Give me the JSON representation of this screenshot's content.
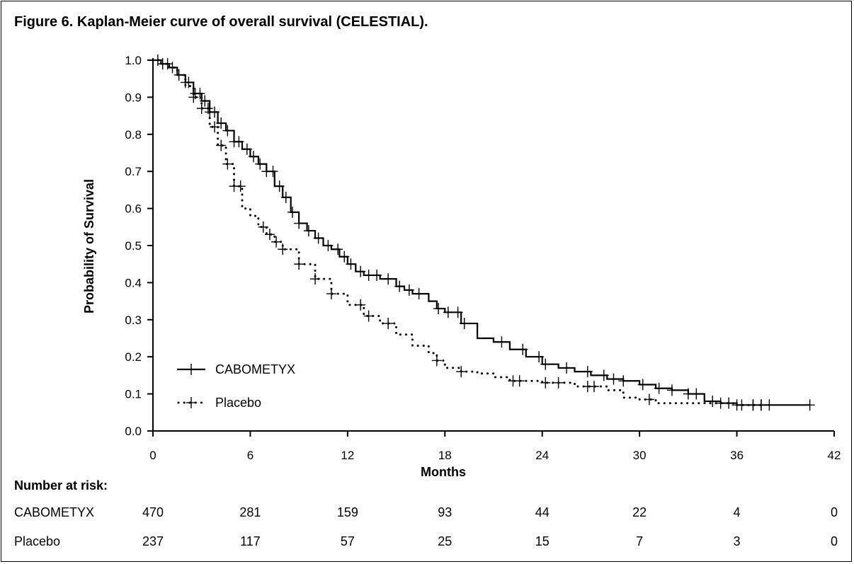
{
  "figure": {
    "title": "Figure 6. Kaplan-Meier curve of overall survival (CELESTIAL)."
  },
  "chart_data": {
    "type": "line",
    "title": "Figure 6. Kaplan-Meier curve of overall survival (CELESTIAL).",
    "xlabel": "Months",
    "ylabel": "Probability of Survival",
    "xlim": [
      0,
      42
    ],
    "ylim": [
      0,
      1.0
    ],
    "x_ticks": [
      0,
      6,
      12,
      18,
      24,
      30,
      36,
      42
    ],
    "y_ticks": [
      0.0,
      0.1,
      0.2,
      0.3,
      0.4,
      0.5,
      0.6,
      0.7,
      0.8,
      0.9,
      1.0
    ],
    "y_tick_labels": [
      "0.0",
      "0.1",
      "0.2",
      "0.3",
      "0.4",
      "0.5",
      "0.6",
      "0.7",
      "0.8",
      "0.9",
      "1.0"
    ],
    "grid": false,
    "legend_position": "bottom-left",
    "series": [
      {
        "name": "CABOMETYX",
        "style": "solid",
        "color": "#000000",
        "points": [
          [
            0,
            1.0
          ],
          [
            0.5,
            0.99
          ],
          [
            1,
            0.98
          ],
          [
            1.5,
            0.96
          ],
          [
            2,
            0.94
          ],
          [
            2.5,
            0.91
          ],
          [
            3,
            0.89
          ],
          [
            3.5,
            0.86
          ],
          [
            4,
            0.83
          ],
          [
            4.5,
            0.81
          ],
          [
            5,
            0.78
          ],
          [
            5.5,
            0.76
          ],
          [
            6,
            0.74
          ],
          [
            6.5,
            0.72
          ],
          [
            7,
            0.7
          ],
          [
            7.5,
            0.66
          ],
          [
            8,
            0.63
          ],
          [
            8.5,
            0.59
          ],
          [
            9,
            0.56
          ],
          [
            9.5,
            0.54
          ],
          [
            10,
            0.52
          ],
          [
            10.5,
            0.5
          ],
          [
            11,
            0.49
          ],
          [
            11.5,
            0.47
          ],
          [
            12,
            0.45
          ],
          [
            12.5,
            0.43
          ],
          [
            13,
            0.42
          ],
          [
            14,
            0.41
          ],
          [
            15,
            0.39
          ],
          [
            15.5,
            0.38
          ],
          [
            16,
            0.37
          ],
          [
            17,
            0.35
          ],
          [
            17.5,
            0.33
          ],
          [
            18,
            0.32
          ],
          [
            19,
            0.29
          ],
          [
            20,
            0.25
          ],
          [
            21,
            0.24
          ],
          [
            22,
            0.22
          ],
          [
            23,
            0.2
          ],
          [
            24,
            0.18
          ],
          [
            25,
            0.17
          ],
          [
            26,
            0.16
          ],
          [
            27,
            0.15
          ],
          [
            28,
            0.14
          ],
          [
            29,
            0.135
          ],
          [
            30,
            0.125
          ],
          [
            31,
            0.115
          ],
          [
            32,
            0.11
          ],
          [
            33,
            0.1
          ],
          [
            34,
            0.08
          ],
          [
            35,
            0.075
          ],
          [
            36,
            0.07
          ],
          [
            38,
            0.07
          ],
          [
            40.5,
            0.07
          ]
        ],
        "censor_x": [
          0.3,
          0.6,
          0.9,
          1.2,
          1.6,
          2.0,
          2.2,
          2.6,
          2.9,
          3.2,
          3.5,
          3.8,
          4.2,
          4.6,
          5.0,
          5.3,
          5.8,
          6.2,
          6.6,
          7.0,
          7.4,
          7.8,
          8.2,
          8.6,
          9.0,
          9.6,
          10.2,
          10.8,
          11.4,
          11.8,
          12.2,
          12.8,
          13.3,
          13.8,
          14.5,
          15.2,
          15.8,
          16.4,
          17.6,
          18.2,
          18.8,
          19.2,
          21.5,
          22.8,
          23.8,
          24.2,
          25.5,
          26.8,
          27.8,
          28.4,
          29.0,
          30.2,
          31.2,
          32.0,
          33.0,
          33.5,
          34.5,
          35.5,
          36.3,
          37.0,
          37.5,
          38.0,
          40.5
        ]
      },
      {
        "name": "Placebo",
        "style": "dotted",
        "color": "#000000",
        "points": [
          [
            0,
            1.0
          ],
          [
            0.5,
            0.99
          ],
          [
            1,
            0.98
          ],
          [
            1.5,
            0.96
          ],
          [
            2,
            0.93
          ],
          [
            2.5,
            0.9
          ],
          [
            3,
            0.87
          ],
          [
            3.5,
            0.82
          ],
          [
            4,
            0.77
          ],
          [
            4.5,
            0.72
          ],
          [
            5,
            0.66
          ],
          [
            5.5,
            0.6
          ],
          [
            6,
            0.58
          ],
          [
            6.5,
            0.55
          ],
          [
            7,
            0.53
          ],
          [
            7.5,
            0.51
          ],
          [
            8,
            0.49
          ],
          [
            9,
            0.45
          ],
          [
            10,
            0.41
          ],
          [
            11,
            0.37
          ],
          [
            12,
            0.34
          ],
          [
            13,
            0.31
          ],
          [
            14,
            0.29
          ],
          [
            15,
            0.26
          ],
          [
            16,
            0.23
          ],
          [
            17,
            0.21
          ],
          [
            17.5,
            0.19
          ],
          [
            18,
            0.17
          ],
          [
            19,
            0.16
          ],
          [
            20,
            0.155
          ],
          [
            21,
            0.145
          ],
          [
            22,
            0.135
          ],
          [
            24,
            0.13
          ],
          [
            26,
            0.12
          ],
          [
            28,
            0.11
          ],
          [
            29,
            0.09
          ],
          [
            30,
            0.085
          ],
          [
            31,
            0.075
          ],
          [
            33,
            0.075
          ],
          [
            36,
            0.07
          ],
          [
            37.5,
            0.07
          ]
        ],
        "censor_x": [
          2.5,
          3.0,
          3.4,
          3.8,
          4.2,
          4.6,
          5.0,
          5.4,
          6.8,
          7.2,
          7.6,
          8.0,
          9.0,
          10.0,
          11.0,
          12.8,
          13.3,
          14.5,
          17.5,
          19.0,
          22.2,
          22.6,
          24.2,
          25.0,
          26.8,
          27.2,
          30.6,
          35.0,
          36.0,
          37.0,
          37.5
        ]
      }
    ]
  },
  "legend": {
    "cabometyx_label": "CABOMETYX",
    "placebo_label": "Placebo"
  },
  "risk_table": {
    "header": "Number at risk:",
    "timepoints": [
      0,
      6,
      12,
      18,
      24,
      30,
      36,
      42
    ],
    "rows": [
      {
        "label": "CABOMETYX",
        "values": [
          "470",
          "281",
          "159",
          "93",
          "44",
          "22",
          "4",
          "0"
        ]
      },
      {
        "label": "Placebo",
        "values": [
          "237",
          "117",
          "57",
          "25",
          "15",
          "7",
          "3",
          "0"
        ]
      }
    ]
  }
}
